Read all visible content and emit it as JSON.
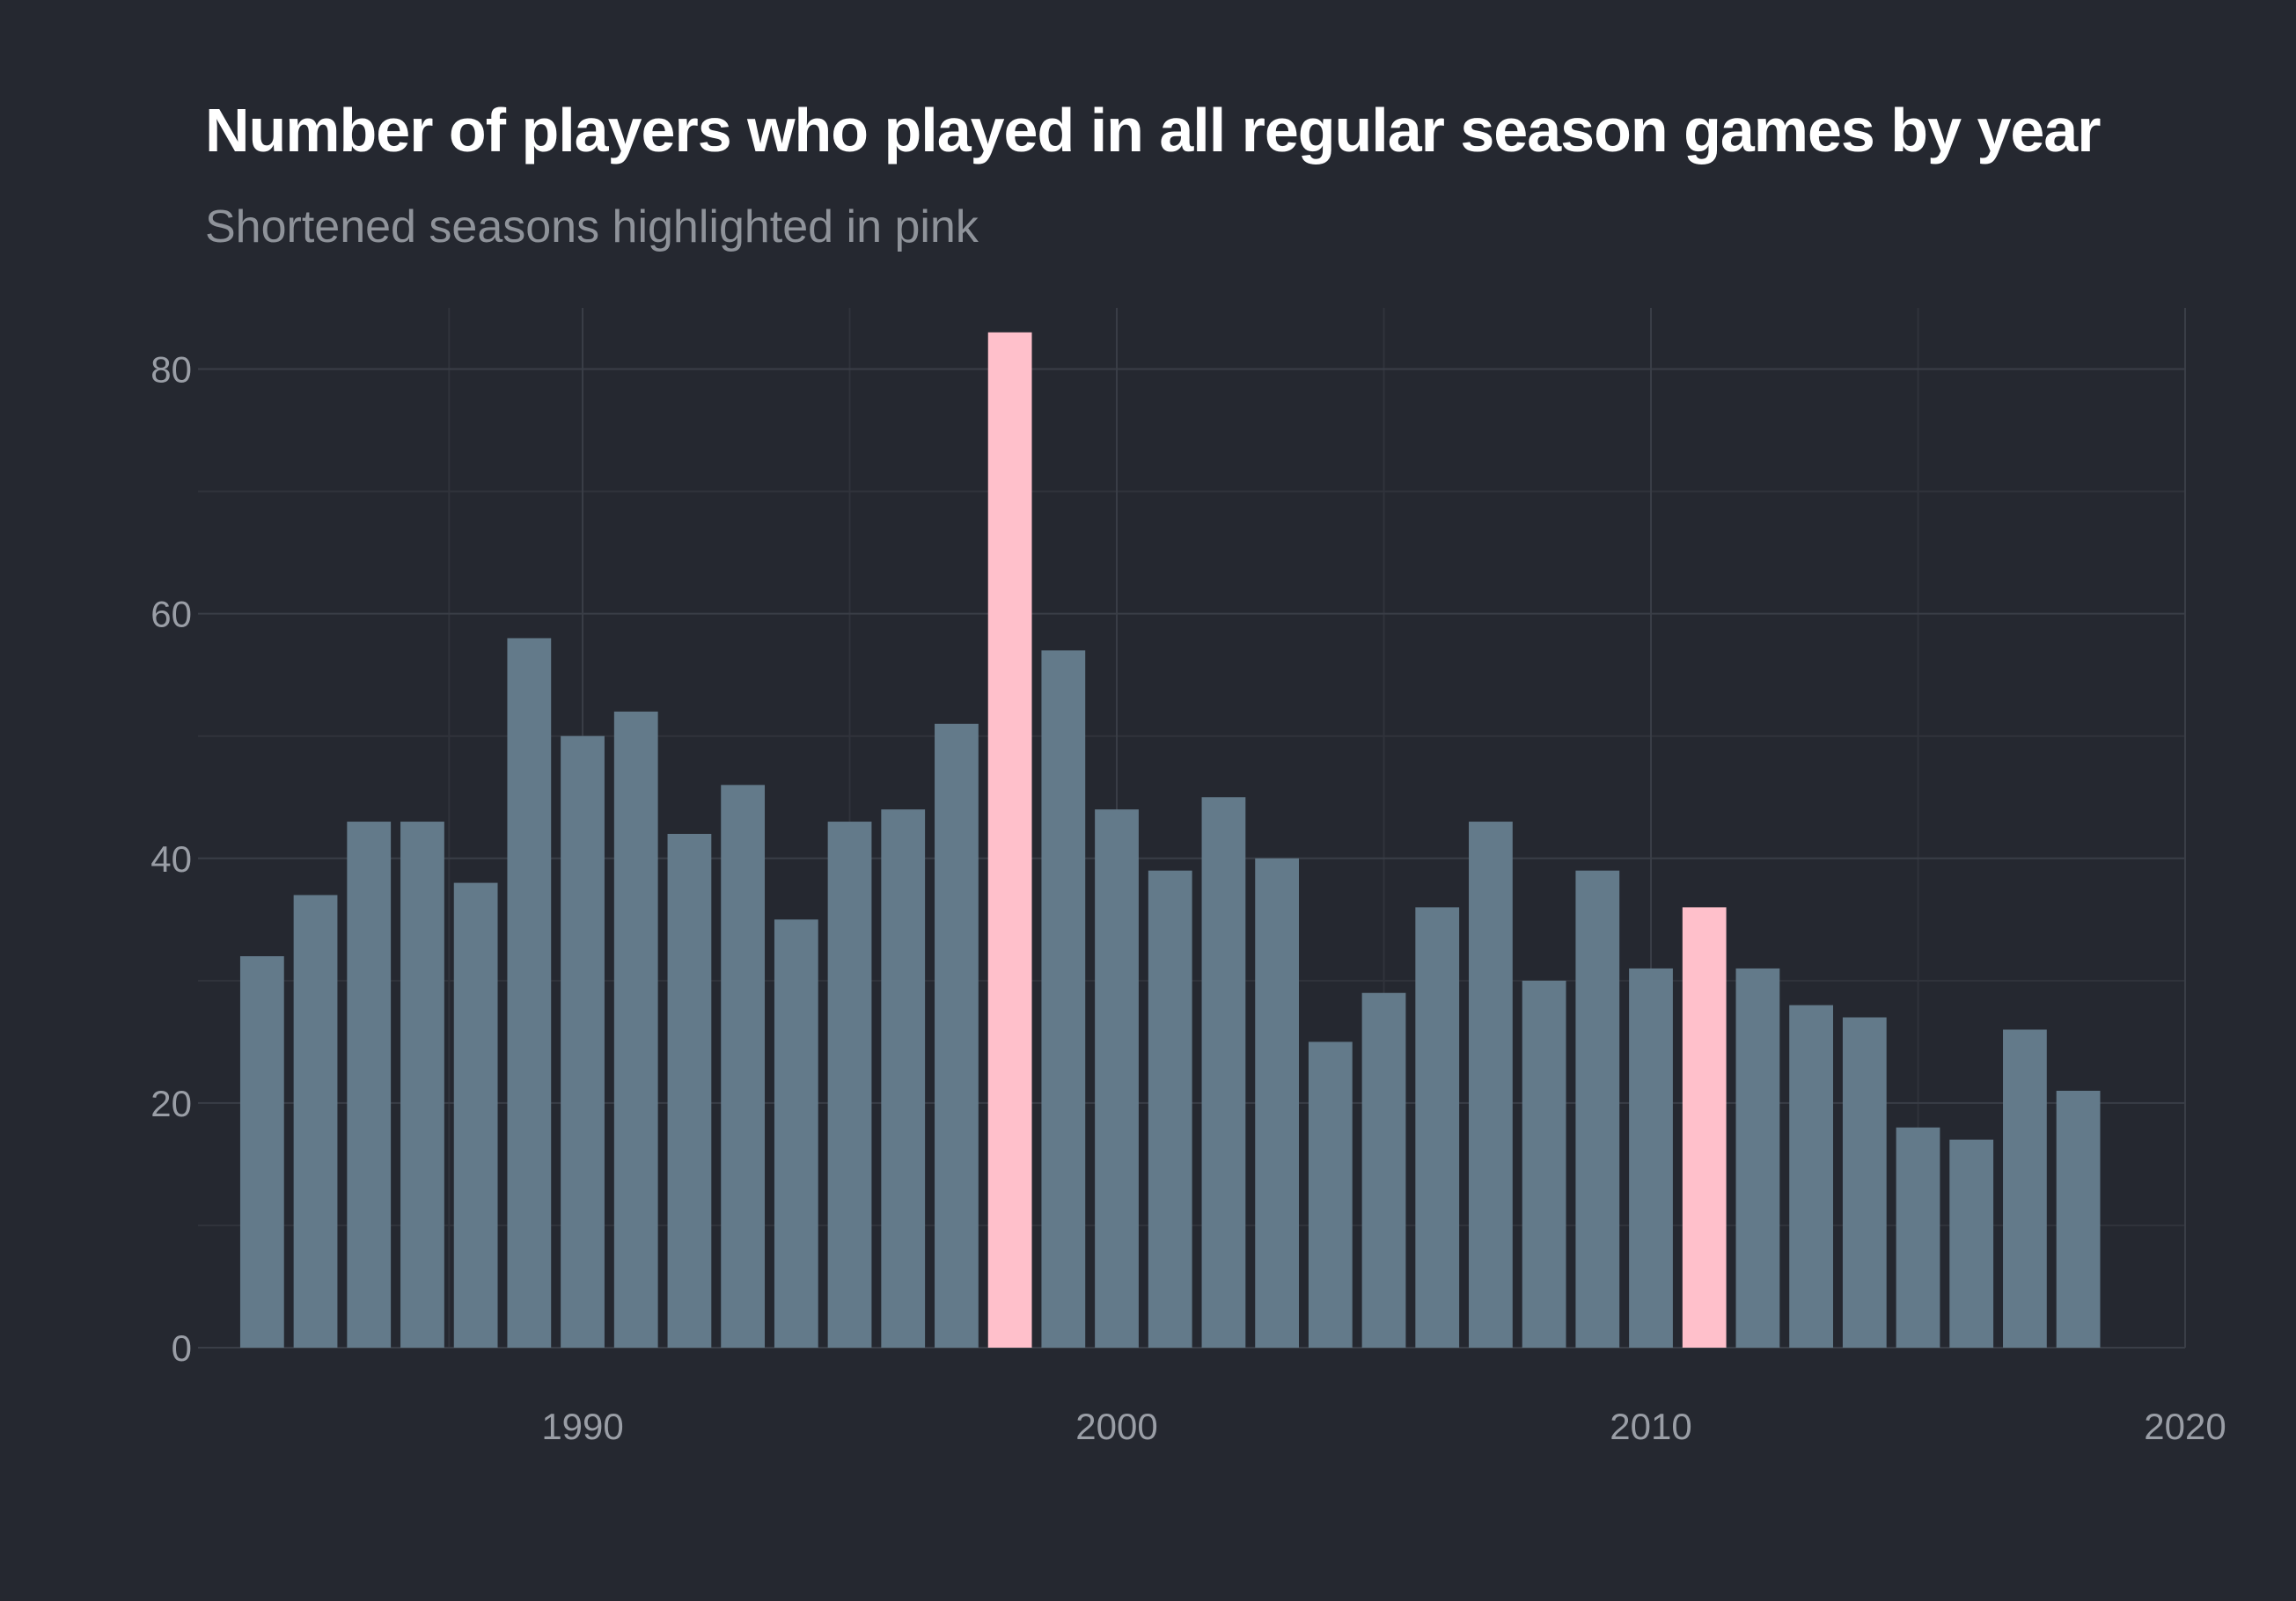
{
  "title": "Number of players who played in all regular season games by year",
  "subtitle": "Shortened seasons highlighted in pink",
  "colors": {
    "background": "#252830",
    "bar": "#637a8a",
    "highlight": "#ffc0cb",
    "grid_major": "#3a3e47",
    "grid_minor": "#30333b",
    "tick_text": "#9a9ea6"
  },
  "chart_data": {
    "type": "bar",
    "title": "Number of players who played in all regular season games by year",
    "subtitle": "Shortened seasons highlighted in pink",
    "xlabel": "",
    "ylabel": "",
    "x": [
      1984,
      1985,
      1986,
      1987,
      1988,
      1989,
      1990,
      1991,
      1992,
      1993,
      1994,
      1995,
      1996,
      1997,
      1998,
      1999,
      2000,
      2001,
      2002,
      2003,
      2004,
      2005,
      2006,
      2007,
      2008,
      2009,
      2010,
      2011,
      2012,
      2013,
      2014,
      2015,
      2016,
      2017,
      2018
    ],
    "values": [
      32,
      37,
      43,
      43,
      38,
      58,
      50,
      52,
      42,
      46,
      35,
      43,
      44,
      51,
      83,
      57,
      44,
      39,
      45,
      40,
      25,
      29,
      36,
      43,
      30,
      39,
      31,
      36,
      31,
      28,
      27,
      18,
      17,
      26,
      21
    ],
    "highlighted": [
      1998,
      2011
    ],
    "xlim": [
      1982.8,
      2020
    ],
    "ylim": [
      0,
      85
    ],
    "x_ticks": [
      1990,
      2000,
      2010,
      2020
    ],
    "x_tick_labels": [
      "1990",
      "2000",
      "2010",
      "2020"
    ],
    "y_ticks": [
      0,
      20,
      40,
      60,
      80
    ],
    "y_tick_labels": [
      "0",
      "20",
      "40",
      "60",
      "80"
    ],
    "grid": true,
    "legend": "none"
  }
}
